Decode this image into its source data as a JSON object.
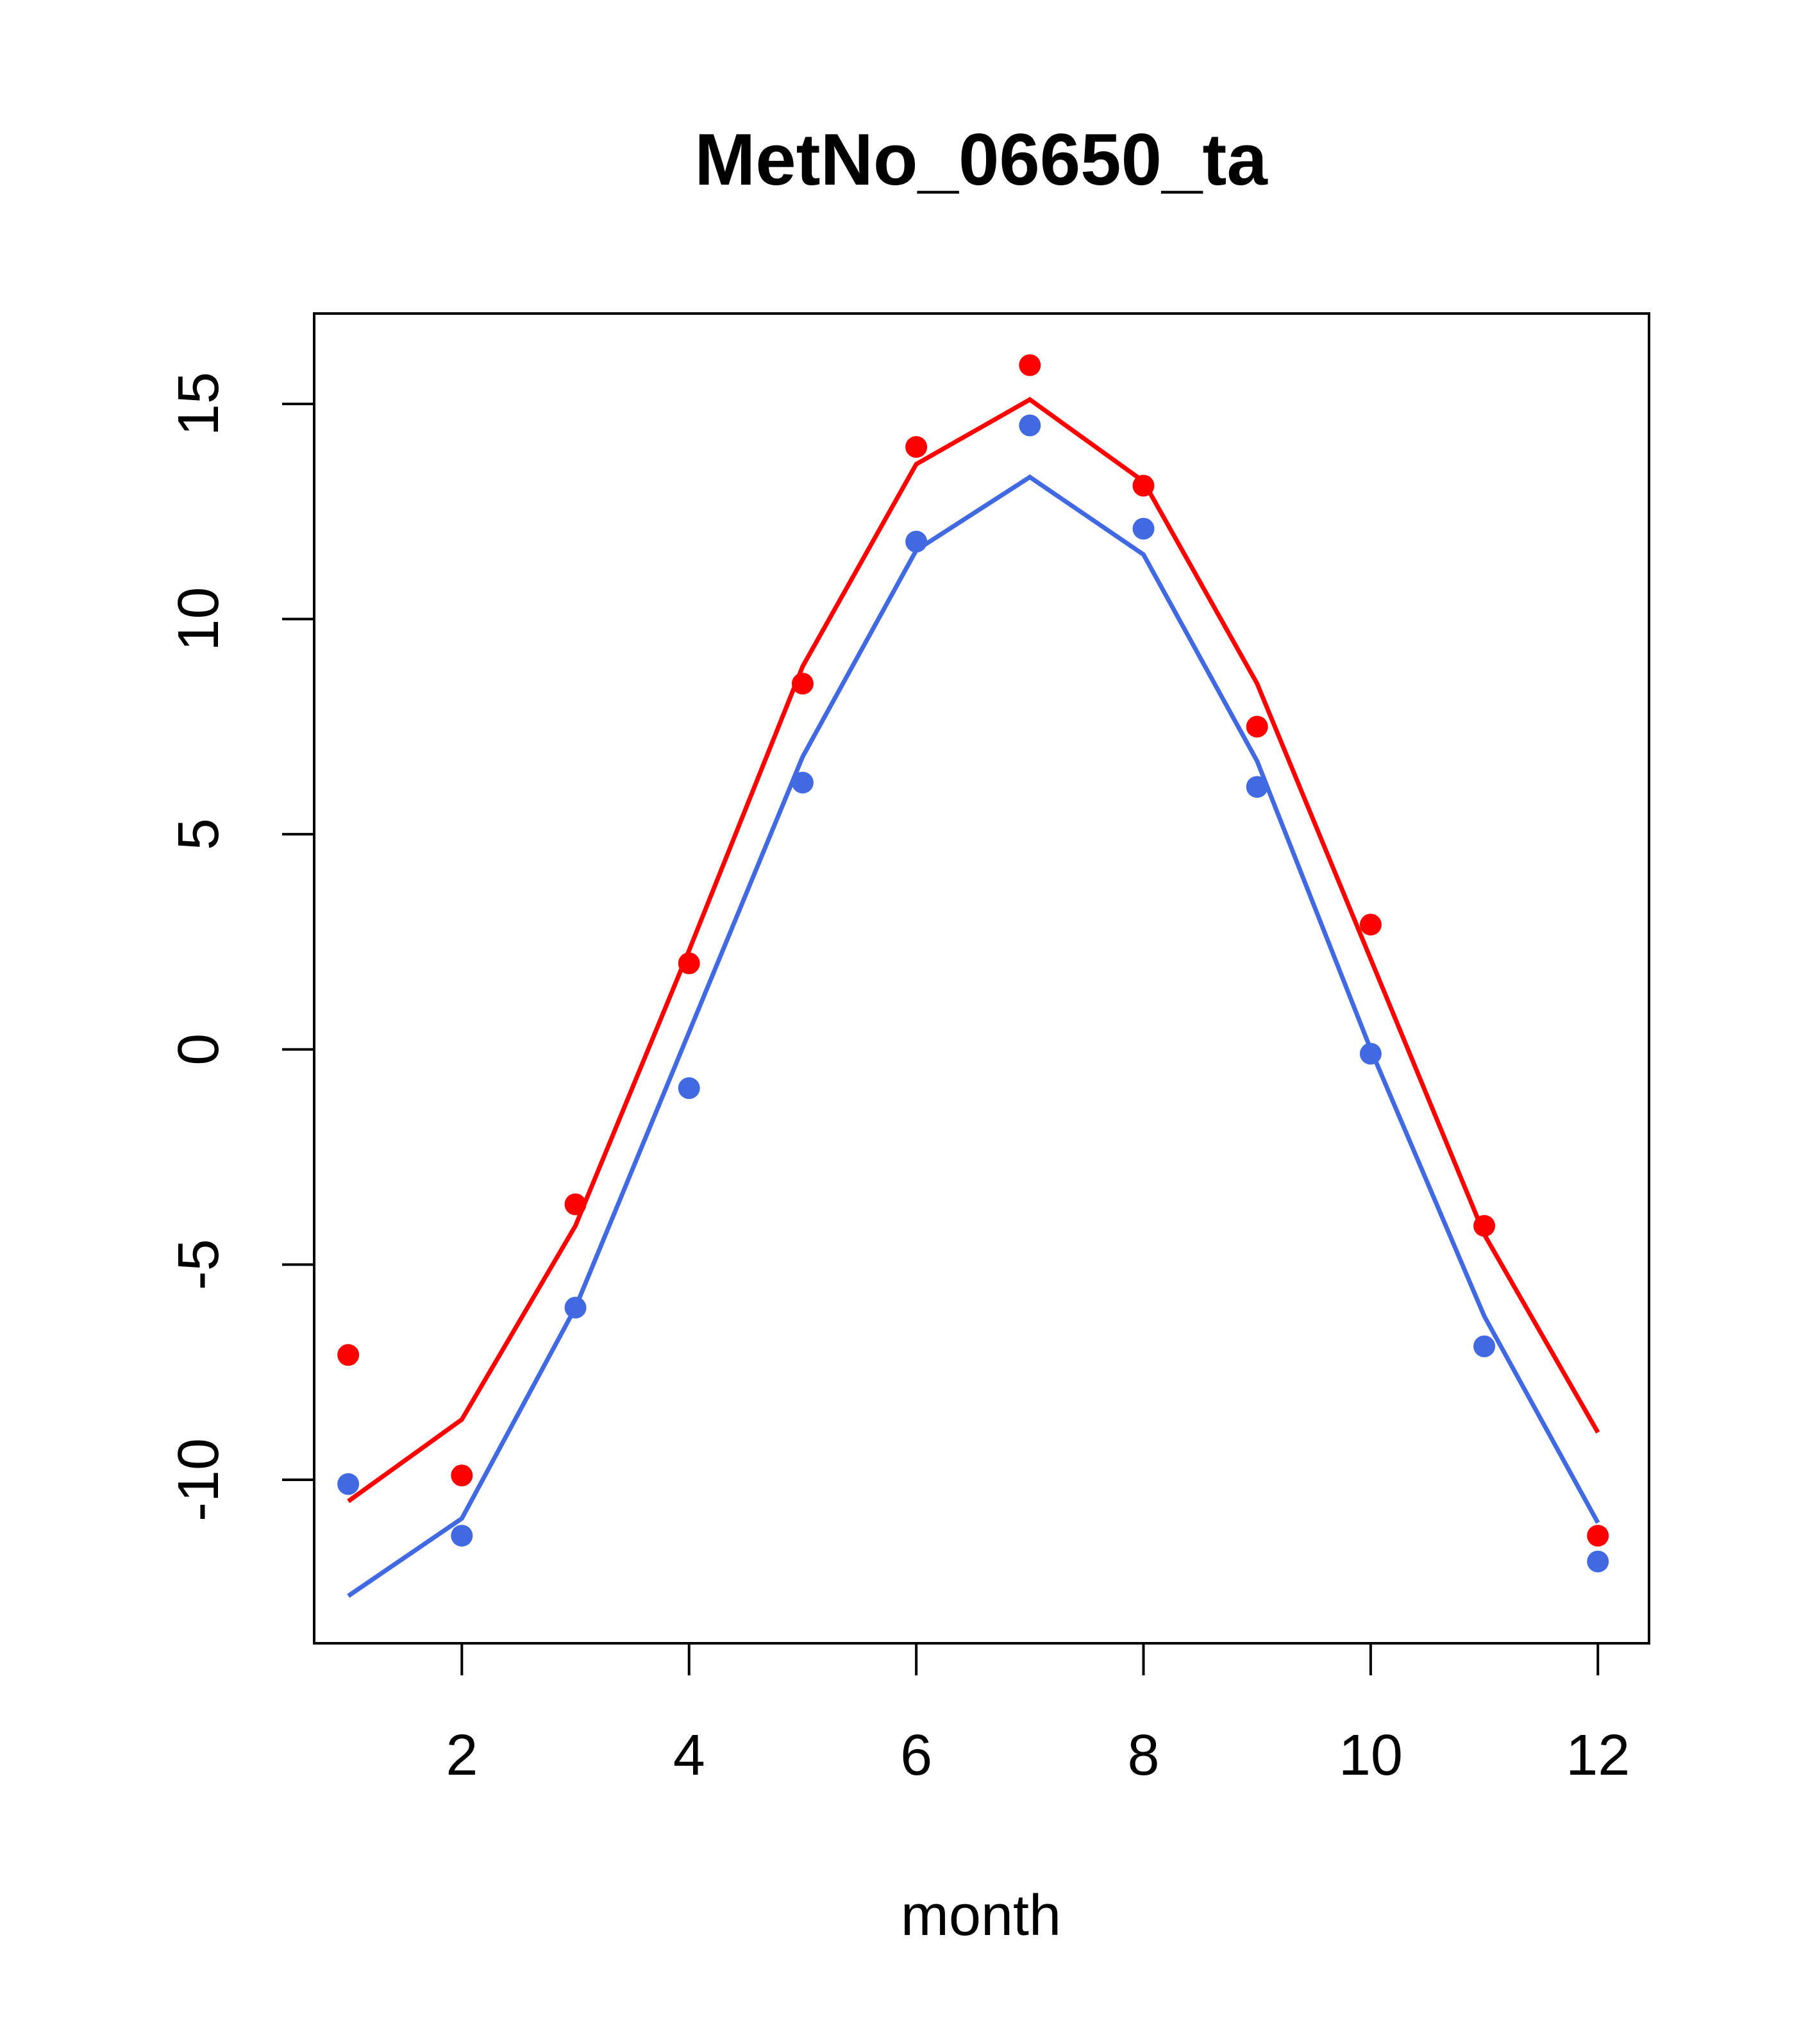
{
  "chart_data": {
    "type": "line",
    "title": "MetNo_06650_ta",
    "xlabel": "month",
    "ylabel": "",
    "xlim": [
      0.7,
      12.45
    ],
    "ylim": [
      -13.8,
      17.1
    ],
    "xticks": [
      2,
      4,
      6,
      8,
      10,
      12
    ],
    "xtick_labels": [
      "2",
      "4",
      "6",
      "8",
      "10",
      "12"
    ],
    "yticks": [
      -10,
      -5,
      0,
      5,
      10,
      15
    ],
    "ytick_labels": [
      "-10",
      "-5",
      "0",
      "5",
      "10",
      "15"
    ],
    "grid": false,
    "x": [
      1,
      2,
      3,
      4,
      5,
      6,
      7,
      8,
      9,
      10,
      11,
      12
    ],
    "series": [
      {
        "color": "#ff0000",
        "line": [
          -10.5,
          -8.6,
          -4.1,
          2.3,
          8.9,
          13.6,
          15.1,
          13.2,
          8.5,
          2.1,
          -4.3,
          -8.9
        ],
        "points": [
          -7.1,
          -9.9,
          -3.6,
          2.0,
          8.5,
          14.0,
          15.9,
          13.1,
          7.5,
          2.9,
          -4.1,
          -11.3
        ]
      },
      {
        "color": "#4169e1",
        "line": [
          -12.7,
          -10.9,
          -6.0,
          0.4,
          6.8,
          11.6,
          13.3,
          11.5,
          6.7,
          0.0,
          -6.2,
          -11.0
        ],
        "points": [
          -10.1,
          -11.3,
          -6.0,
          -0.9,
          6.2,
          11.8,
          14.5,
          12.1,
          6.1,
          -0.1,
          -6.9,
          -11.9
        ]
      }
    ]
  }
}
